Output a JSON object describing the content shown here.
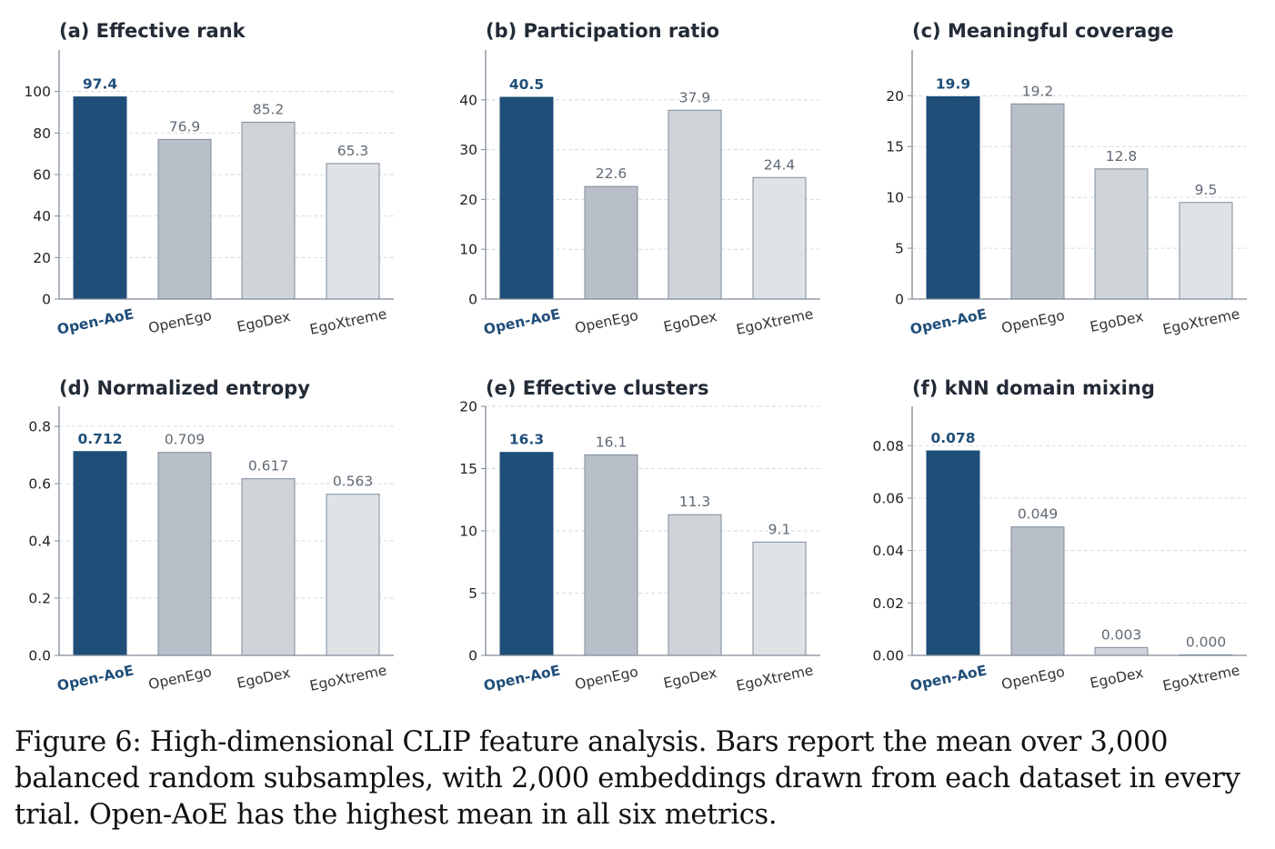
{
  "caption": "Figure 6: High-dimensional CLIP feature analysis. Bars report the mean over 3,000 balanced random subsamples, with 2,000 embeddings drawn from each dataset in every trial. Open-AoE has the highest mean in all six metrics.",
  "colors": {
    "highlight": "#1f4e79",
    "bars": [
      "#1f4e79",
      "#b8bfc8",
      "#cfd4d9",
      "#dfe3e6"
    ],
    "bar_stroke": "#7f8b99",
    "label_muted": "#606a75",
    "title": "#222b36",
    "axis": "#7f8b99",
    "grid": "#d5dbe1"
  },
  "chart_data": [
    {
      "type": "bar",
      "title": "(a) Effective rank",
      "categories": [
        "Open-AoE",
        "OpenEgo",
        "EgoDex",
        "EgoXtreme"
      ],
      "values": [
        97.4,
        76.9,
        85.2,
        65.3
      ],
      "value_labels": [
        "97.4",
        "76.9",
        "85.2",
        "65.3"
      ],
      "ylim": [
        0,
        120
      ],
      "yticks": [
        0,
        20,
        40,
        60,
        80,
        100
      ],
      "ytick_labels": [
        "0",
        "20",
        "40",
        "60",
        "80",
        "100"
      ],
      "grid": true
    },
    {
      "type": "bar",
      "title": "(b) Participation ratio",
      "categories": [
        "Open-AoE",
        "OpenEgo",
        "EgoDex",
        "EgoXtreme"
      ],
      "values": [
        40.5,
        22.6,
        37.9,
        24.4
      ],
      "value_labels": [
        "40.5",
        "22.6",
        "37.9",
        "24.4"
      ],
      "ylim": [
        0,
        50
      ],
      "yticks": [
        0,
        10,
        20,
        30,
        40
      ],
      "ytick_labels": [
        "0",
        "10",
        "20",
        "30",
        "40"
      ],
      "grid": true
    },
    {
      "type": "bar",
      "title": "(c) Meaningful coverage",
      "categories": [
        "Open-AoE",
        "OpenEgo",
        "EgoDex",
        "EgoXtreme"
      ],
      "values": [
        19.9,
        19.2,
        12.8,
        9.5
      ],
      "value_labels": [
        "19.9",
        "19.2",
        "12.8",
        "9.5"
      ],
      "ylim": [
        0,
        24.5
      ],
      "yticks": [
        0,
        5,
        10,
        15,
        20
      ],
      "ytick_labels": [
        "0",
        "5",
        "10",
        "15",
        "20"
      ],
      "grid": true
    },
    {
      "type": "bar",
      "title": "(d) Normalized entropy",
      "categories": [
        "Open-AoE",
        "OpenEgo",
        "EgoDex",
        "EgoXtreme"
      ],
      "values": [
        0.712,
        0.709,
        0.617,
        0.563
      ],
      "value_labels": [
        "0.712",
        "0.709",
        "0.617",
        "0.563"
      ],
      "ylim": [
        0,
        0.87
      ],
      "yticks": [
        0,
        0.2,
        0.4,
        0.6,
        0.8
      ],
      "ytick_labels": [
        "0.0",
        "0.2",
        "0.4",
        "0.6",
        "0.8"
      ],
      "grid": true
    },
    {
      "type": "bar",
      "title": "(e) Effective clusters",
      "categories": [
        "Open-AoE",
        "OpenEgo",
        "EgoDex",
        "EgoXtreme"
      ],
      "values": [
        16.3,
        16.1,
        11.3,
        9.1
      ],
      "value_labels": [
        "16.3",
        "16.1",
        "11.3",
        "9.1"
      ],
      "ylim": [
        0,
        20
      ],
      "yticks": [
        0,
        5,
        10,
        15,
        20
      ],
      "ytick_labels": [
        "0",
        "5",
        "10",
        "15",
        "20"
      ],
      "grid": true
    },
    {
      "type": "bar",
      "title": "(f) kNN domain mixing",
      "categories": [
        "Open-AoE",
        "OpenEgo",
        "EgoDex",
        "EgoXtreme"
      ],
      "values": [
        0.078,
        0.049,
        0.003,
        0.0
      ],
      "value_labels": [
        "0.078",
        "0.049",
        "0.003",
        "0.000"
      ],
      "ylim": [
        0,
        0.095
      ],
      "yticks": [
        0,
        0.02,
        0.04,
        0.06,
        0.08
      ],
      "ytick_labels": [
        "0.00",
        "0.02",
        "0.04",
        "0.06",
        "0.08"
      ],
      "grid": true
    }
  ]
}
